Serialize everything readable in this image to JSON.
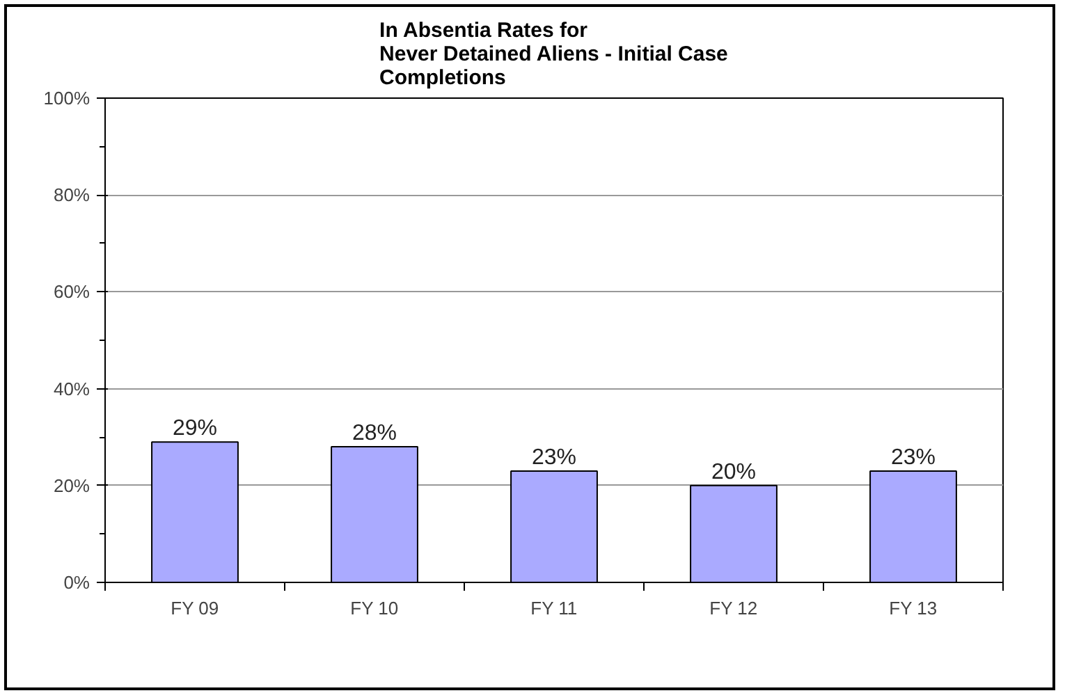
{
  "chart_data": {
    "type": "bar",
    "title": "In Absentia Rates for\nNever Detained Aliens - Initial Case\nCompletions",
    "categories": [
      "FY 09",
      "FY 10",
      "FY 11",
      "FY 12",
      "FY 13"
    ],
    "values": [
      29,
      28,
      23,
      20,
      23
    ],
    "value_labels": [
      "29%",
      "28%",
      "23%",
      "20%",
      "23%"
    ],
    "color": "#aaaaff",
    "ylim": [
      0,
      100
    ],
    "yticks": [
      {
        "value": 0,
        "label": "0%"
      },
      {
        "value": 20,
        "label": "20%"
      },
      {
        "value": 40,
        "label": "40%"
      },
      {
        "value": 60,
        "label": "60%"
      },
      {
        "value": 80,
        "label": "80%"
      },
      {
        "value": 100,
        "label": "100%"
      }
    ],
    "grid": "y"
  }
}
